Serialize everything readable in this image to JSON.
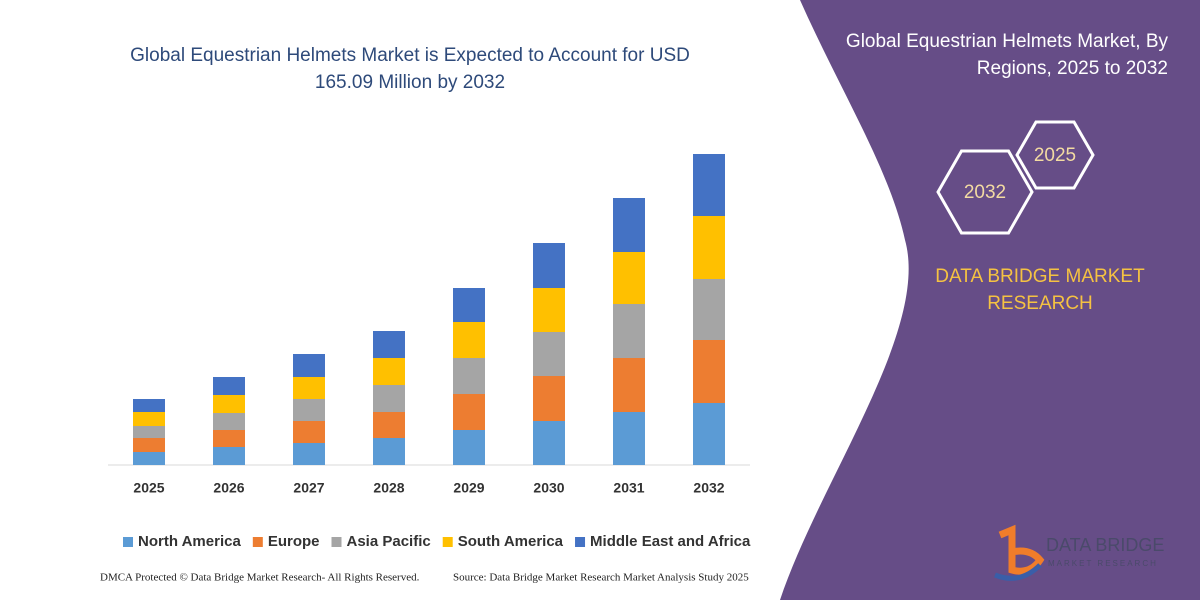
{
  "chart_data": {
    "type": "stacked-bar",
    "title": "Global Equestrian Helmets Market is Expected to Account for USD 165.09 Million by 2032",
    "categories": [
      "2025",
      "2026",
      "2027",
      "2028",
      "2029",
      "2030",
      "2031",
      "2032"
    ],
    "series": [
      {
        "name": "North America",
        "color": "#5b9bd5",
        "values": [
          13,
          18,
          22,
          27,
          35,
          44,
          53,
          62
        ]
      },
      {
        "name": "Europe",
        "color": "#ed7d31",
        "values": [
          14,
          17,
          22,
          26,
          36,
          45,
          54,
          63
        ]
      },
      {
        "name": "Asia Pacific",
        "color": "#a5a5a5",
        "values": [
          12,
          17,
          22,
          27,
          36,
          44,
          54,
          61
        ]
      },
      {
        "name": "South America",
        "color": "#ffc000",
        "values": [
          14,
          18,
          22,
          27,
          36,
          44,
          52,
          63
        ]
      },
      {
        "name": "Middle East and Africa",
        "color": "#4472c4",
        "values": [
          13,
          18,
          23,
          27,
          34,
          45,
          54,
          62
        ]
      }
    ],
    "ylim": [
      0,
      320
    ]
  },
  "panel": {
    "heading": "Global Equestrian Helmets Market, By Regions, 2025 to 2032",
    "hexagons": [
      "2025",
      "2032"
    ],
    "brand": "DATA BRIDGE MARKET RESEARCH"
  },
  "logo": {
    "name": "DATA BRIDGE",
    "tagline": "MARKET RESEARCH"
  },
  "footer": {
    "left": "DMCA Protected © Data Bridge Market Research-  All Rights Reserved.",
    "right": "Source: Data Bridge Market Research  Market Analysis Study 2025"
  }
}
